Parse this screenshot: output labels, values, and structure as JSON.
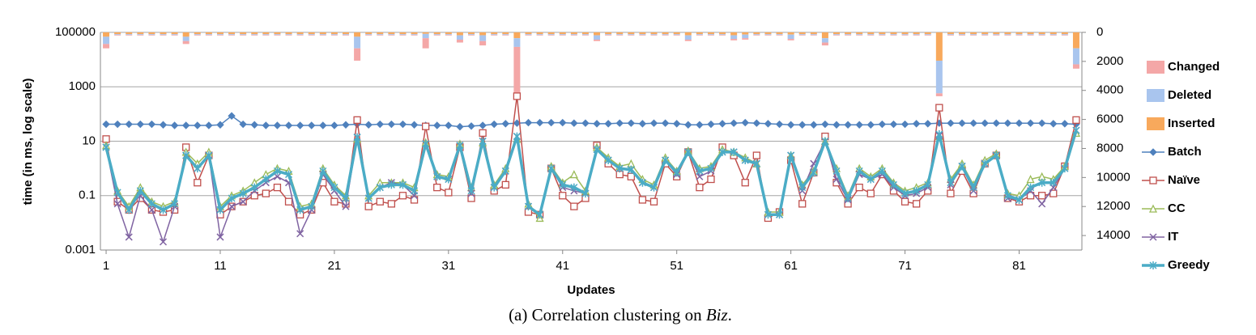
{
  "chart_data": {
    "type": "line",
    "ylabel": "time (in ms, log scale)",
    "xlabel": "Updates",
    "caption": {
      "prefix": "(a) Correlation clustering on ",
      "name": "Biz",
      "suffix": "."
    },
    "log_y": true,
    "grid": true,
    "y2_reversed": true,
    "legend": "right",
    "x": [
      1,
      2,
      3,
      4,
      5,
      6,
      7,
      8,
      9,
      10,
      11,
      12,
      13,
      14,
      15,
      16,
      17,
      18,
      19,
      20,
      21,
      22,
      23,
      24,
      25,
      26,
      27,
      28,
      29,
      30,
      31,
      32,
      33,
      34,
      35,
      36,
      37,
      38,
      39,
      40,
      41,
      42,
      43,
      44,
      45,
      46,
      47,
      48,
      49,
      50,
      51,
      52,
      53,
      54,
      55,
      56,
      57,
      58,
      59,
      60,
      61,
      62,
      63,
      64,
      65,
      66,
      67,
      68,
      69,
      70,
      71,
      72,
      73,
      74,
      75,
      76,
      77,
      78,
      79,
      80,
      81,
      82,
      83,
      84,
      85,
      86
    ],
    "xlim": [
      0.5,
      86.5
    ],
    "xticks": [
      1,
      11,
      21,
      31,
      41,
      51,
      61,
      71,
      81
    ],
    "ylim": [
      0.001,
      100000
    ],
    "yticks": [
      100000,
      1000,
      10,
      0.1,
      0.001
    ],
    "y2lim": [
      0,
      15000
    ],
    "y2ticks": [
      0,
      2000,
      4000,
      6000,
      8000,
      10000,
      12000,
      14000
    ],
    "bar_series": [
      {
        "name": "Changed",
        "color": "#f4a7a7",
        "axis": "y2",
        "values": [
          300,
          40,
          40,
          40,
          40,
          40,
          40,
          200,
          40,
          40,
          40,
          40,
          40,
          40,
          40,
          40,
          40,
          40,
          40,
          40,
          40,
          40,
          850,
          40,
          40,
          40,
          40,
          40,
          700,
          40,
          40,
          200,
          40,
          300,
          40,
          40,
          3570,
          40,
          40,
          40,
          40,
          40,
          40,
          100,
          40,
          40,
          40,
          40,
          40,
          40,
          40,
          100,
          40,
          40,
          40,
          100,
          100,
          40,
          40,
          40,
          100,
          40,
          40,
          200,
          40,
          40,
          40,
          40,
          40,
          40,
          40,
          40,
          40,
          200,
          40,
          40,
          40,
          40,
          40,
          40,
          40,
          40,
          40,
          40,
          40,
          300
        ]
      },
      {
        "name": "Deleted",
        "color": "#a9c5ee",
        "axis": "y2",
        "values": [
          500,
          60,
          60,
          60,
          60,
          60,
          60,
          300,
          60,
          60,
          60,
          60,
          60,
          60,
          60,
          60,
          60,
          60,
          60,
          60,
          60,
          60,
          800,
          60,
          60,
          60,
          60,
          60,
          300,
          60,
          60,
          300,
          60,
          400,
          60,
          60,
          600,
          60,
          60,
          60,
          60,
          60,
          60,
          300,
          60,
          60,
          60,
          60,
          60,
          60,
          60,
          300,
          60,
          60,
          60,
          250,
          250,
          60,
          60,
          60,
          300,
          60,
          60,
          300,
          60,
          60,
          60,
          60,
          60,
          60,
          60,
          60,
          60,
          2250,
          60,
          60,
          60,
          60,
          60,
          60,
          60,
          60,
          60,
          60,
          60,
          1100
        ]
      },
      {
        "name": "Inserted",
        "color": "#f8a95c",
        "axis": "y2",
        "values": [
          300,
          120,
          120,
          120,
          120,
          120,
          120,
          300,
          120,
          120,
          120,
          120,
          120,
          120,
          120,
          120,
          120,
          120,
          120,
          120,
          120,
          120,
          300,
          120,
          120,
          120,
          120,
          120,
          100,
          120,
          120,
          200,
          120,
          200,
          120,
          120,
          400,
          120,
          120,
          120,
          120,
          120,
          120,
          200,
          120,
          120,
          120,
          120,
          120,
          120,
          120,
          200,
          120,
          120,
          120,
          200,
          150,
          120,
          120,
          120,
          150,
          120,
          120,
          400,
          120,
          120,
          120,
          120,
          120,
          120,
          120,
          120,
          120,
          1950,
          120,
          120,
          120,
          120,
          120,
          120,
          120,
          120,
          120,
          120,
          120,
          1100
        ]
      }
    ],
    "series": [
      {
        "name": "Batch",
        "color": "#4f81bd",
        "marker": "diamond",
        "values": [
          42,
          42,
          42,
          42,
          42,
          40,
          38,
          38,
          38,
          38,
          40,
          85,
          42,
          40,
          38,
          38,
          38,
          38,
          38,
          38,
          38,
          40,
          42,
          40,
          42,
          42,
          42,
          40,
          38,
          38,
          38,
          34,
          36,
          38,
          42,
          44,
          46,
          48,
          48,
          48,
          48,
          46,
          46,
          44,
          44,
          46,
          46,
          44,
          46,
          46,
          44,
          40,
          40,
          42,
          44,
          46,
          48,
          46,
          44,
          42,
          40,
          40,
          40,
          42,
          40,
          40,
          40,
          40,
          42,
          42,
          42,
          44,
          44,
          46,
          46,
          46,
          46,
          46,
          46,
          46,
          46,
          46,
          46,
          44,
          44,
          42
        ]
      },
      {
        "name": "Naïve",
        "color": "#c0504d",
        "marker": "square",
        "values": [
          12,
          0.06,
          0.03,
          0.08,
          0.03,
          0.025,
          0.03,
          6,
          0.3,
          3,
          0.02,
          0.04,
          0.06,
          0.1,
          0.12,
          0.2,
          0.06,
          0.02,
          0.03,
          0.3,
          0.06,
          0.05,
          60,
          0.04,
          0.06,
          0.05,
          0.1,
          0.07,
          35,
          0.2,
          0.13,
          6,
          0.08,
          20,
          0.15,
          0.25,
          450,
          0.025,
          0.02,
          1,
          0.1,
          0.04,
          0.08,
          7,
          1.5,
          0.6,
          0.5,
          0.07,
          0.06,
          1.5,
          0.5,
          4,
          0.2,
          0.4,
          6,
          3,
          0.3,
          3,
          0.015,
          0.025,
          2,
          0.05,
          0.7,
          15,
          0.3,
          0.05,
          0.2,
          0.12,
          0.6,
          0.15,
          0.06,
          0.05,
          0.15,
          170,
          0.12,
          0.8,
          0.12,
          1.5,
          3,
          0.08,
          0.06,
          0.1,
          0.1,
          0.12,
          1.2,
          60
        ]
      },
      {
        "name": "CC",
        "color": "#9bbb59",
        "marker": "triangle",
        "values": [
          7,
          0.15,
          0.04,
          0.2,
          0.06,
          0.04,
          0.06,
          4,
          1.5,
          4,
          0.04,
          0.1,
          0.15,
          0.3,
          0.6,
          1,
          0.8,
          0.04,
          0.05,
          1,
          0.25,
          0.1,
          12,
          0.1,
          0.3,
          0.3,
          0.3,
          0.2,
          9,
          0.6,
          0.5,
          8,
          0.2,
          9,
          0.25,
          1,
          12,
          0.05,
          0.015,
          1.2,
          0.3,
          0.6,
          0.15,
          6,
          2.5,
          1.2,
          1.5,
          0.4,
          0.25,
          2.5,
          0.8,
          4.5,
          1,
          1.2,
          5,
          4,
          2.5,
          1.5,
          0.025,
          0.025,
          3,
          0.25,
          0.8,
          10,
          1,
          0.1,
          1,
          0.5,
          1,
          0.3,
          0.15,
          0.2,
          0.3,
          15,
          0.4,
          1.5,
          0.25,
          2,
          3.5,
          0.12,
          0.1,
          0.4,
          0.5,
          0.4,
          1.2,
          20
        ]
      },
      {
        "name": "IT",
        "color": "#8064a2",
        "marker": "x",
        "values": [
          6,
          0.05,
          0.003,
          0.1,
          0.03,
          0.002,
          0.04,
          3,
          1,
          3,
          0.003,
          0.04,
          0.06,
          0.15,
          0.3,
          0.5,
          0.3,
          0.004,
          0.03,
          0.6,
          0.15,
          0.04,
          14,
          0.08,
          0.2,
          0.3,
          0.25,
          0.1,
          8,
          0.5,
          0.4,
          7,
          0.12,
          10,
          0.2,
          0.8,
          15,
          0.04,
          0.02,
          1,
          0.2,
          0.15,
          0.12,
          5,
          2,
          1,
          0.9,
          0.3,
          0.2,
          2,
          0.6,
          4,
          0.5,
          0.8,
          4,
          4,
          2,
          1.5,
          0.02,
          0.02,
          3,
          0.15,
          1.5,
          10,
          0.4,
          0.07,
          0.6,
          0.4,
          0.6,
          0.2,
          0.1,
          0.12,
          0.2,
          16,
          0.25,
          1.2,
          0.15,
          1.5,
          3,
          0.08,
          0.07,
          0.15,
          0.05,
          0.2,
          1,
          25
        ]
      },
      {
        "name": "Greedy",
        "color": "#4bacc6",
        "marker": "asterisk",
        "thick": true,
        "values": [
          6,
          0.13,
          0.03,
          0.15,
          0.05,
          0.03,
          0.05,
          3,
          1,
          3,
          0.03,
          0.08,
          0.12,
          0.2,
          0.4,
          0.8,
          0.6,
          0.03,
          0.04,
          0.8,
          0.2,
          0.08,
          14,
          0.08,
          0.2,
          0.25,
          0.25,
          0.15,
          8,
          0.5,
          0.4,
          7,
          0.15,
          10,
          0.2,
          0.8,
          15,
          0.04,
          0.02,
          1,
          0.25,
          0.2,
          0.12,
          5,
          2,
          1,
          0.9,
          0.3,
          0.2,
          2,
          0.7,
          4,
          0.8,
          1,
          4,
          4,
          2,
          1.5,
          0.02,
          0.02,
          3,
          0.2,
          0.7,
          10,
          0.8,
          0.08,
          0.8,
          0.4,
          0.8,
          0.25,
          0.12,
          0.15,
          0.25,
          18,
          0.3,
          1.2,
          0.2,
          1.5,
          3,
          0.1,
          0.07,
          0.2,
          0.3,
          0.3,
          1,
          25
        ]
      }
    ]
  }
}
